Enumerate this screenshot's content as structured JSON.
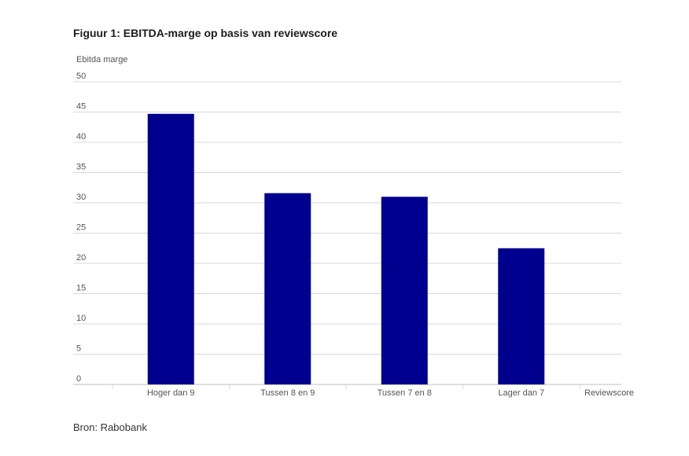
{
  "title": "Figuur 1: EBITDA-marge op basis van reviewscore",
  "source": "Bron: Rabobank",
  "chart_data": {
    "type": "bar",
    "categories": [
      "Hoger dan 9",
      "Tussen 8 en 9",
      "Tussen 7 en 8",
      "Lager dan 7"
    ],
    "values": [
      44.7,
      31.6,
      31.0,
      22.5
    ],
    "ylabel": "Ebitda marge",
    "xlabel": "Reviewscore",
    "ylim": [
      0,
      50
    ],
    "yticks": [
      0,
      5,
      10,
      15,
      20,
      25,
      30,
      35,
      40,
      45,
      50
    ],
    "grid": true,
    "colors": {
      "bar": "#00008f",
      "grid": "#d9d9d9",
      "axis": "#bfbfbf"
    }
  }
}
